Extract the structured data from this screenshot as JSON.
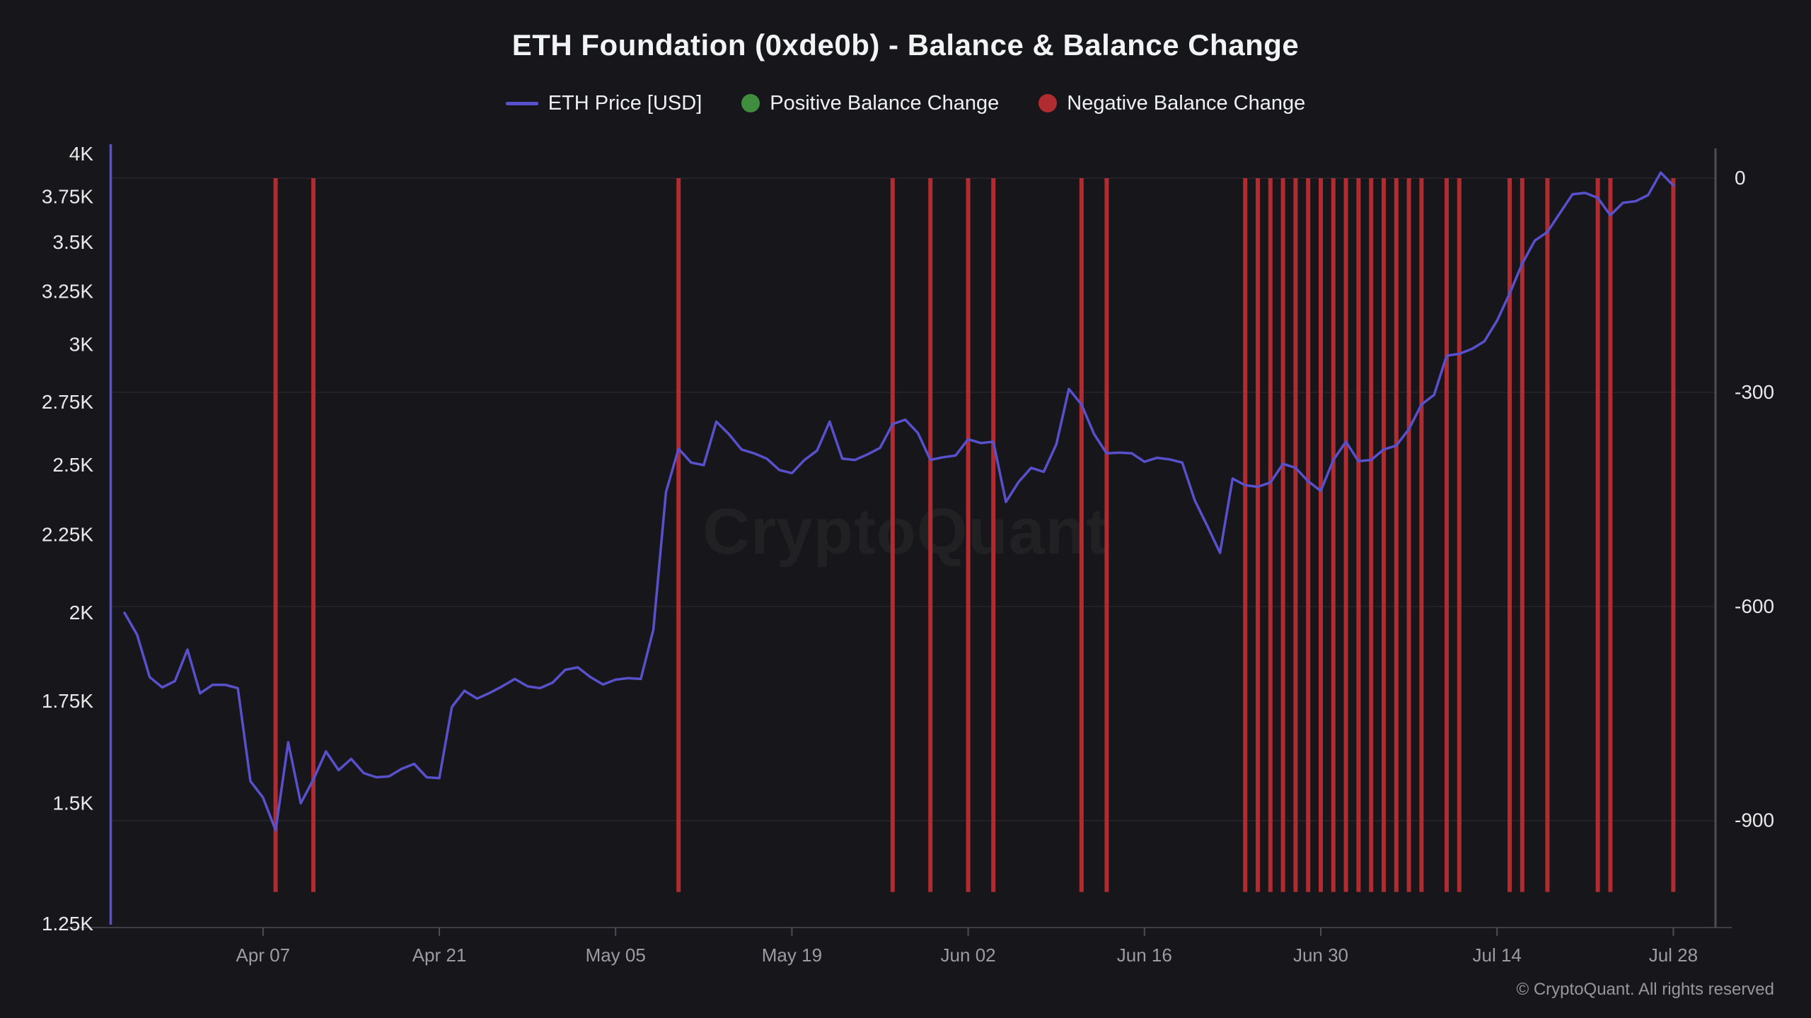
{
  "header": {
    "title": "ETH Foundation (0xde0b) - Balance & Balance Change"
  },
  "legend": [
    {
      "label": "ETH Price [USD]",
      "swatch": "line",
      "color": "#5850cc"
    },
    {
      "label": "Positive Balance Change",
      "swatch": "dot",
      "color": "#3f8e3f"
    },
    {
      "label": "Negative Balance Change",
      "swatch": "dot",
      "color": "#b02c31"
    }
  ],
  "watermark": {
    "text": "CryptoQuant"
  },
  "footer": {
    "text": "© CryptoQuant. All rights reserved"
  },
  "chart_data": {
    "type": "line+bar",
    "title": "ETH Foundation (0xde0b) - Balance & Balance Change",
    "x": [
      "Mar 27",
      "Mar 28",
      "Mar 29",
      "Mar 30",
      "Mar 31",
      "Apr 01",
      "Apr 02",
      "Apr 03",
      "Apr 04",
      "Apr 05",
      "Apr 06",
      "Apr 07",
      "Apr 08",
      "Apr 09",
      "Apr 10",
      "Apr 11",
      "Apr 12",
      "Apr 13",
      "Apr 14",
      "Apr 15",
      "Apr 16",
      "Apr 17",
      "Apr 18",
      "Apr 19",
      "Apr 20",
      "Apr 21",
      "Apr 22",
      "Apr 23",
      "Apr 24",
      "Apr 25",
      "Apr 26",
      "Apr 27",
      "Apr 28",
      "Apr 29",
      "Apr 30",
      "May 01",
      "May 02",
      "May 03",
      "May 04",
      "May 05",
      "May 06",
      "May 07",
      "May 08",
      "May 09",
      "May 10",
      "May 11",
      "May 12",
      "May 13",
      "May 14",
      "May 15",
      "May 16",
      "May 17",
      "May 18",
      "May 19",
      "May 20",
      "May 21",
      "May 22",
      "May 23",
      "May 24",
      "May 25",
      "May 26",
      "May 27",
      "May 28",
      "May 29",
      "May 30",
      "May 31",
      "Jun 01",
      "Jun 02",
      "Jun 03",
      "Jun 04",
      "Jun 05",
      "Jun 06",
      "Jun 07",
      "Jun 08",
      "Jun 09",
      "Jun 10",
      "Jun 11",
      "Jun 12",
      "Jun 13",
      "Jun 14",
      "Jun 15",
      "Jun 16",
      "Jun 17",
      "Jun 18",
      "Jun 19",
      "Jun 20",
      "Jun 21",
      "Jun 22",
      "Jun 23",
      "Jun 24",
      "Jun 25",
      "Jun 26",
      "Jun 27",
      "Jun 28",
      "Jun 29",
      "Jun 30",
      "Jul 01",
      "Jul 02",
      "Jul 03",
      "Jul 04",
      "Jul 05",
      "Jul 06",
      "Jul 07",
      "Jul 08",
      "Jul 09",
      "Jul 10",
      "Jul 11",
      "Jul 12",
      "Jul 13",
      "Jul 14",
      "Jul 15",
      "Jul 16",
      "Jul 17",
      "Jul 18",
      "Jul 19",
      "Jul 20",
      "Jul 21",
      "Jul 22",
      "Jul 23",
      "Jul 24",
      "Jul 25",
      "Jul 26",
      "Jul 27",
      "Jul 28"
    ],
    "series": [
      {
        "name": "ETH Price [USD]",
        "type": "line",
        "axis": "left",
        "color": "#5850cc",
        "values": [
          2000,
          1935,
          1815,
          1787,
          1804,
          1892,
          1771,
          1794,
          1794,
          1785,
          1551,
          1513,
          1440,
          1645,
          1500,
          1555,
          1622,
          1577,
          1604,
          1570,
          1560,
          1562,
          1580,
          1592,
          1560,
          1558,
          1735,
          1778,
          1757,
          1772,
          1790,
          1810,
          1790,
          1785,
          1800,
          1835,
          1842,
          1815,
          1795,
          1808,
          1812,
          1810,
          1950,
          2400,
          2563,
          2510,
          2500,
          2670,
          2620,
          2560,
          2545,
          2525,
          2482,
          2470,
          2520,
          2556,
          2670,
          2525,
          2520,
          2541,
          2566,
          2660,
          2678,
          2625,
          2520,
          2530,
          2537,
          2600,
          2585,
          2590,
          2365,
          2437,
          2490,
          2475,
          2580,
          2805,
          2740,
          2620,
          2545,
          2548,
          2545,
          2513,
          2528,
          2522,
          2510,
          2370,
          2280,
          2190,
          2450,
          2425,
          2420,
          2435,
          2505,
          2490,
          2440,
          2405,
          2520,
          2590,
          2515,
          2520,
          2560,
          2575,
          2640,
          2740,
          2780,
          2950,
          2958,
          2980,
          3015,
          3110,
          3240,
          3390,
          3510,
          3556,
          3660,
          3765,
          3772,
          3744,
          3647,
          3716,
          3725,
          3760,
          3890,
          3815
        ]
      },
      {
        "name": "Negative Balance Change",
        "type": "bar",
        "axis": "right",
        "color": "#b02c31",
        "points": [
          {
            "date": "Apr 08",
            "value": -1000
          },
          {
            "date": "Apr 11",
            "value": -1000
          },
          {
            "date": "May 10",
            "value": -1000
          },
          {
            "date": "May 27",
            "value": -1000
          },
          {
            "date": "May 30",
            "value": -1000
          },
          {
            "date": "Jun 02",
            "value": -1000
          },
          {
            "date": "Jun 04",
            "value": -1000
          },
          {
            "date": "Jun 11",
            "value": -1000
          },
          {
            "date": "Jun 13",
            "value": -1000
          },
          {
            "date": "Jun 24",
            "value": -1000
          },
          {
            "date": "Jun 25",
            "value": -1000
          },
          {
            "date": "Jun 26",
            "value": -1000
          },
          {
            "date": "Jun 27",
            "value": -1000
          },
          {
            "date": "Jun 28",
            "value": -1000
          },
          {
            "date": "Jun 29",
            "value": -1000
          },
          {
            "date": "Jun 30",
            "value": -1000
          },
          {
            "date": "Jul 01",
            "value": -1000
          },
          {
            "date": "Jul 02",
            "value": -1000
          },
          {
            "date": "Jul 03",
            "value": -1000
          },
          {
            "date": "Jul 04",
            "value": -1000
          },
          {
            "date": "Jul 05",
            "value": -1000
          },
          {
            "date": "Jul 06",
            "value": -1000
          },
          {
            "date": "Jul 07",
            "value": -1000
          },
          {
            "date": "Jul 08",
            "value": -1000
          },
          {
            "date": "Jul 10",
            "value": -1000
          },
          {
            "date": "Jul 11",
            "value": -1000
          },
          {
            "date": "Jul 15",
            "value": -1000
          },
          {
            "date": "Jul 16",
            "value": -1000
          },
          {
            "date": "Jul 18",
            "value": -1000
          },
          {
            "date": "Jul 22",
            "value": -1000
          },
          {
            "date": "Jul 23",
            "value": -1000
          },
          {
            "date": "Jul 28",
            "value": -1000
          }
        ]
      },
      {
        "name": "Positive Balance Change",
        "type": "bar",
        "axis": "right",
        "color": "#3f8e3f",
        "points": []
      }
    ],
    "left_axis": {
      "scale": "log",
      "tick_labels": [
        "4K",
        "3.75K",
        "3.5K",
        "3.25K",
        "3K",
        "2.75K",
        "2.5K",
        "2.25K",
        "2K",
        "1.75K",
        "1.5K",
        "1.25K"
      ],
      "tick_values": [
        4000,
        3750,
        3500,
        3250,
        3000,
        2750,
        2500,
        2250,
        2000,
        1750,
        1500,
        1250
      ],
      "range": [
        1250,
        4000
      ]
    },
    "right_axis": {
      "scale": "linear",
      "tick_labels": [
        "0",
        "-300",
        "-600",
        "-900"
      ],
      "tick_values": [
        0,
        -300,
        -600,
        -900
      ],
      "range": [
        -1050,
        40
      ]
    },
    "x_ticks": [
      "Apr 07",
      "Apr 21",
      "May 05",
      "May 19",
      "Jun 02",
      "Jun 16",
      "Jun 30",
      "Jul 14",
      "Jul 28"
    ],
    "grid": "horizontal",
    "legend_position": "top"
  }
}
